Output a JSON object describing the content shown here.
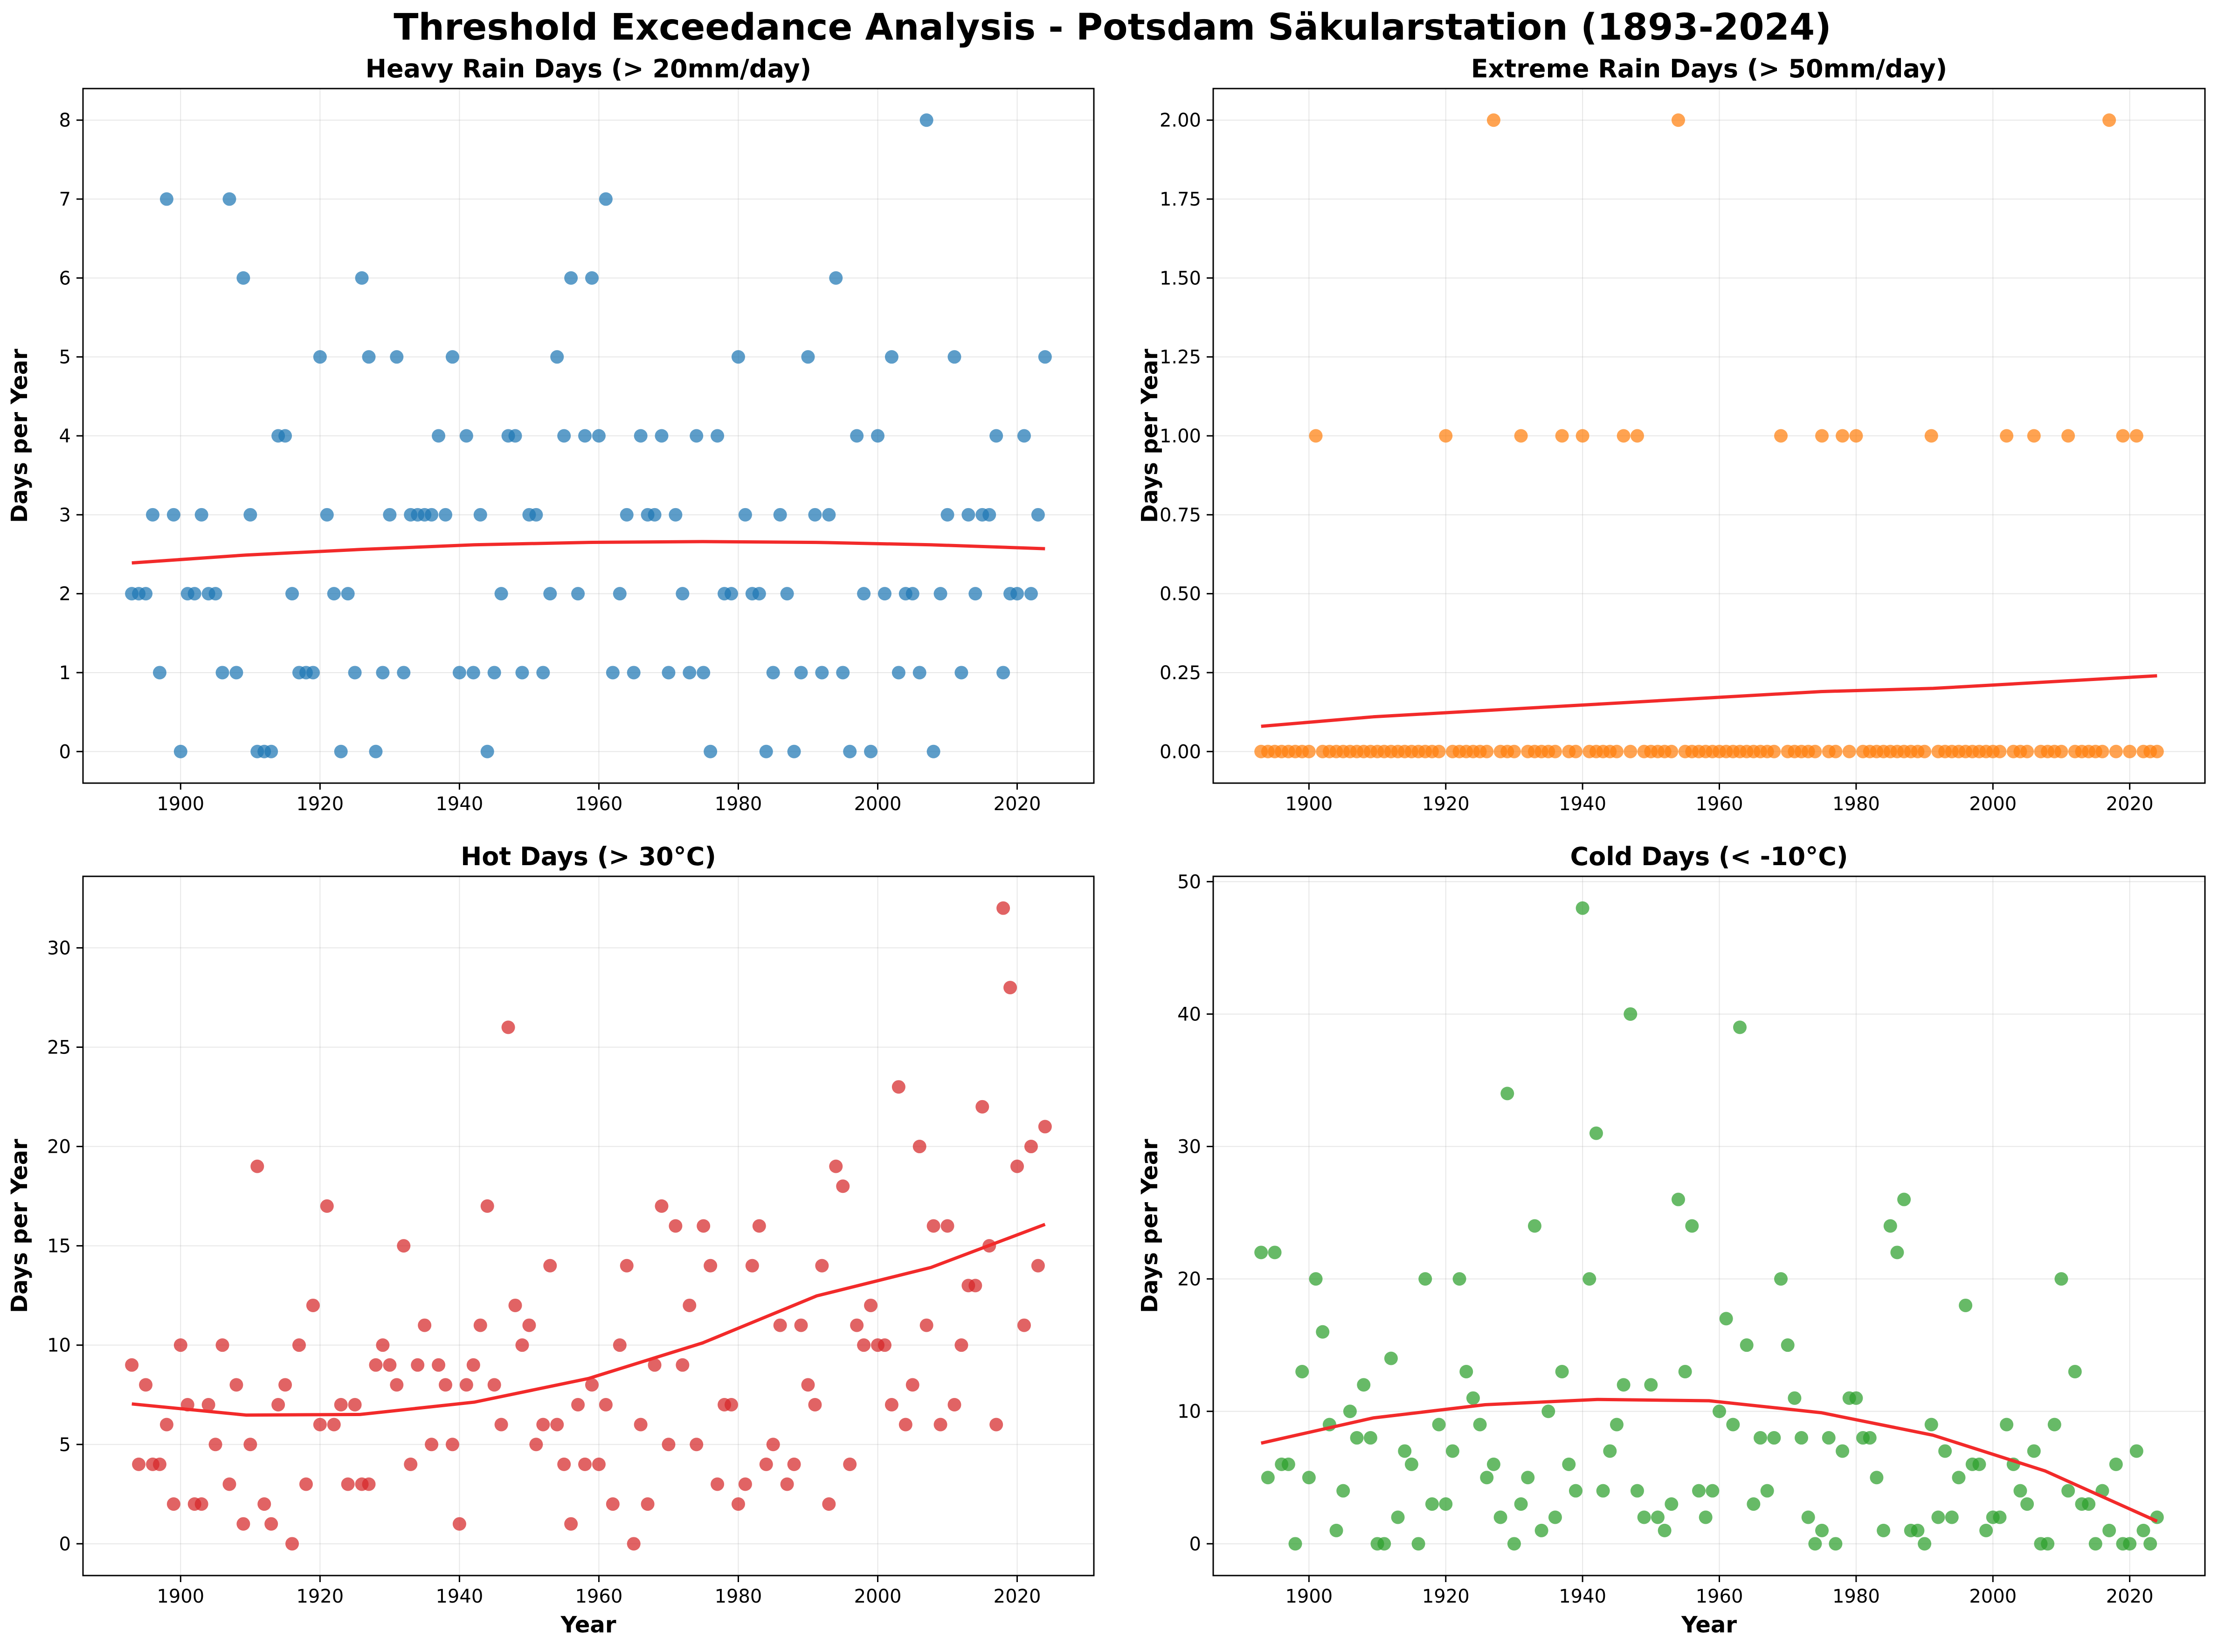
{
  "title": "Threshold Exceedance Analysis - Potsdam Säkularstation (1893-2024)",
  "trend_color": "#f22a2a",
  "chart_data": [
    {
      "type": "scatter",
      "title": "Heavy Rain Days (> 20mm/day)",
      "xlabel": "",
      "ylabel": "Days per Year",
      "xlim": [
        1886,
        2031
      ],
      "ylim": [
        -0.4,
        8.4
      ],
      "xticks": [
        1900,
        1920,
        1940,
        1960,
        1980,
        2000,
        2020
      ],
      "yticks": [
        0,
        1,
        2,
        3,
        4,
        5,
        6,
        7,
        8
      ],
      "ytick_labels": [
        "0",
        "1",
        "2",
        "3",
        "4",
        "5",
        "6",
        "7",
        "8"
      ],
      "color": "#1f77b4",
      "grid": true,
      "x": [
        1893,
        1894,
        1895,
        1896,
        1897,
        1898,
        1899,
        1900,
        1901,
        1902,
        1903,
        1904,
        1905,
        1906,
        1907,
        1908,
        1909,
        1910,
        1911,
        1912,
        1913,
        1914,
        1915,
        1916,
        1917,
        1918,
        1919,
        1920,
        1921,
        1922,
        1923,
        1924,
        1925,
        1926,
        1927,
        1928,
        1929,
        1930,
        1931,
        1932,
        1933,
        1934,
        1935,
        1936,
        1937,
        1938,
        1939,
        1940,
        1941,
        1942,
        1943,
        1944,
        1945,
        1946,
        1947,
        1948,
        1949,
        1950,
        1951,
        1952,
        1953,
        1954,
        1955,
        1956,
        1957,
        1958,
        1959,
        1960,
        1961,
        1962,
        1963,
        1964,
        1965,
        1966,
        1967,
        1968,
        1969,
        1970,
        1971,
        1972,
        1973,
        1974,
        1975,
        1976,
        1977,
        1978,
        1979,
        1980,
        1981,
        1982,
        1983,
        1984,
        1985,
        1986,
        1987,
        1988,
        1989,
        1990,
        1991,
        1992,
        1993,
        1994,
        1995,
        1996,
        1997,
        1998,
        1999,
        2000,
        2001,
        2002,
        2003,
        2004,
        2005,
        2006,
        2007,
        2008,
        2009,
        2010,
        2011,
        2012,
        2013,
        2014,
        2015,
        2016,
        2017,
        2018,
        2019,
        2020,
        2021,
        2022,
        2023,
        2024
      ],
      "y": [
        2,
        2,
        2,
        3,
        1,
        7,
        3,
        0,
        2,
        2,
        3,
        2,
        2,
        1,
        7,
        1,
        6,
        3,
        0,
        0,
        0,
        4,
        4,
        2,
        1,
        1,
        1,
        5,
        3,
        2,
        0,
        2,
        1,
        6,
        5,
        0,
        1,
        3,
        5,
        1,
        3,
        3,
        3,
        3,
        4,
        3,
        5,
        1,
        4,
        1,
        3,
        0,
        1,
        2,
        4,
        4,
        1,
        3,
        3,
        1,
        2,
        5,
        4,
        6,
        2,
        4,
        6,
        4,
        7,
        1,
        2,
        3,
        1,
        4,
        3,
        3,
        4,
        1,
        3,
        2,
        1,
        4,
        1,
        0,
        4,
        2,
        2,
        5,
        3,
        2,
        2,
        0,
        1,
        3,
        2,
        0,
        1,
        5,
        3,
        1,
        3,
        6,
        1,
        0,
        4,
        2,
        0,
        4,
        2,
        5,
        1,
        2,
        2,
        1,
        8,
        0,
        2,
        3,
        5,
        1,
        3,
        2,
        3,
        3,
        4,
        1,
        2,
        2,
        4,
        2,
        3,
        5
      ],
      "trend": [
        2.39,
        2.49,
        2.56,
        2.62,
        2.65,
        2.66,
        2.65,
        2.62,
        2.57
      ]
    },
    {
      "type": "scatter",
      "title": "Extreme Rain Days (> 50mm/day)",
      "xlabel": "",
      "ylabel": "Days per Year",
      "xlim": [
        1886,
        2031
      ],
      "ylim": [
        -0.1,
        2.1
      ],
      "xticks": [
        1900,
        1920,
        1940,
        1960,
        1980,
        2000,
        2020
      ],
      "yticks": [
        0,
        0.25,
        0.5,
        0.75,
        1.0,
        1.25,
        1.5,
        1.75,
        2.0
      ],
      "ytick_labels": [
        "0.00",
        "0.25",
        "0.50",
        "0.75",
        "1.00",
        "1.25",
        "1.50",
        "1.75",
        "2.00"
      ],
      "color": "#ff7f0e",
      "grid": true,
      "x": [
        1893,
        1894,
        1895,
        1896,
        1897,
        1898,
        1899,
        1900,
        1901,
        1902,
        1903,
        1904,
        1905,
        1906,
        1907,
        1908,
        1909,
        1910,
        1911,
        1912,
        1913,
        1914,
        1915,
        1916,
        1917,
        1918,
        1919,
        1920,
        1921,
        1922,
        1923,
        1924,
        1925,
        1926,
        1927,
        1928,
        1929,
        1930,
        1931,
        1932,
        1933,
        1934,
        1935,
        1936,
        1937,
        1938,
        1939,
        1940,
        1941,
        1942,
        1943,
        1944,
        1945,
        1946,
        1947,
        1948,
        1949,
        1950,
        1951,
        1952,
        1953,
        1954,
        1955,
        1956,
        1957,
        1958,
        1959,
        1960,
        1961,
        1962,
        1963,
        1964,
        1965,
        1966,
        1967,
        1968,
        1969,
        1970,
        1971,
        1972,
        1973,
        1974,
        1975,
        1976,
        1977,
        1978,
        1979,
        1980,
        1981,
        1982,
        1983,
        1984,
        1985,
        1986,
        1987,
        1988,
        1989,
        1990,
        1991,
        1992,
        1993,
        1994,
        1995,
        1996,
        1997,
        1998,
        1999,
        2000,
        2001,
        2002,
        2003,
        2004,
        2005,
        2006,
        2007,
        2008,
        2009,
        2010,
        2011,
        2012,
        2013,
        2014,
        2015,
        2016,
        2017,
        2018,
        2019,
        2020,
        2021,
        2022,
        2023,
        2024
      ],
      "y": [
        0,
        0,
        0,
        0,
        0,
        0,
        0,
        0,
        1,
        0,
        0,
        0,
        0,
        0,
        0,
        0,
        0,
        0,
        0,
        0,
        0,
        0,
        0,
        0,
        0,
        0,
        0,
        1,
        0,
        0,
        0,
        0,
        0,
        0,
        2,
        0,
        0,
        0,
        1,
        0,
        0,
        0,
        0,
        0,
        1,
        0,
        0,
        1,
        0,
        0,
        0,
        0,
        0,
        1,
        0,
        1,
        0,
        0,
        0,
        0,
        0,
        2,
        0,
        0,
        0,
        0,
        0,
        0,
        0,
        0,
        0,
        0,
        0,
        0,
        0,
        0,
        1,
        0,
        0,
        0,
        0,
        0,
        1,
        0,
        0,
        1,
        0,
        1,
        0,
        0,
        0,
        0,
        0,
        0,
        0,
        0,
        0,
        0,
        1,
        0,
        0,
        0,
        0,
        0,
        0,
        0,
        0,
        0,
        0,
        1,
        0,
        0,
        0,
        1,
        0,
        0,
        0,
        0,
        1,
        0,
        0,
        0,
        0,
        0,
        2,
        0,
        1,
        0,
        1,
        0,
        0,
        0
      ],
      "trend": [
        0.08,
        0.11,
        0.13,
        0.15,
        0.17,
        0.19,
        0.2,
        0.22,
        0.24
      ]
    },
    {
      "type": "scatter",
      "title": "Hot Days (> 30°C)",
      "xlabel": "Year",
      "ylabel": "Days per Year",
      "xlim": [
        1886,
        2031
      ],
      "ylim": [
        -1.6,
        33.6
      ],
      "xticks": [
        1900,
        1920,
        1940,
        1960,
        1980,
        2000,
        2020
      ],
      "yticks": [
        0,
        5,
        10,
        15,
        20,
        25,
        30
      ],
      "ytick_labels": [
        "0",
        "5",
        "10",
        "15",
        "20",
        "25",
        "30"
      ],
      "color": "#d62728",
      "grid": true,
      "x": [
        1893,
        1894,
        1895,
        1896,
        1897,
        1898,
        1899,
        1900,
        1901,
        1902,
        1903,
        1904,
        1905,
        1906,
        1907,
        1908,
        1909,
        1910,
        1911,
        1912,
        1913,
        1914,
        1915,
        1916,
        1917,
        1918,
        1919,
        1920,
        1921,
        1922,
        1923,
        1924,
        1925,
        1926,
        1927,
        1928,
        1929,
        1930,
        1931,
        1932,
        1933,
        1934,
        1935,
        1936,
        1937,
        1938,
        1939,
        1940,
        1941,
        1942,
        1943,
        1944,
        1945,
        1946,
        1947,
        1948,
        1949,
        1950,
        1951,
        1952,
        1953,
        1954,
        1955,
        1956,
        1957,
        1958,
        1959,
        1960,
        1961,
        1962,
        1963,
        1964,
        1965,
        1966,
        1967,
        1968,
        1969,
        1970,
        1971,
        1972,
        1973,
        1974,
        1975,
        1976,
        1977,
        1978,
        1979,
        1980,
        1981,
        1982,
        1983,
        1984,
        1985,
        1986,
        1987,
        1988,
        1989,
        1990,
        1991,
        1992,
        1993,
        1994,
        1995,
        1996,
        1997,
        1998,
        1999,
        2000,
        2001,
        2002,
        2003,
        2004,
        2005,
        2006,
        2007,
        2008,
        2009,
        2010,
        2011,
        2012,
        2013,
        2014,
        2015,
        2016,
        2017,
        2018,
        2019,
        2020,
        2021,
        2022,
        2023,
        2024
      ],
      "y": [
        9,
        4,
        8,
        4,
        4,
        6,
        2,
        10,
        7,
        2,
        2,
        7,
        5,
        10,
        3,
        8,
        1,
        5,
        19,
        2,
        1,
        7,
        8,
        0,
        10,
        3,
        12,
        6,
        17,
        6,
        7,
        3,
        7,
        3,
        3,
        9,
        10,
        9,
        8,
        15,
        4,
        9,
        11,
        5,
        9,
        8,
        5,
        1,
        8,
        9,
        11,
        17,
        8,
        6,
        26,
        12,
        10,
        11,
        5,
        6,
        14,
        6,
        4,
        1,
        7,
        4,
        8,
        4,
        7,
        2,
        10,
        14,
        0,
        6,
        2,
        9,
        17,
        5,
        16,
        9,
        12,
        5,
        16,
        14,
        3,
        7,
        7,
        2,
        3,
        14,
        16,
        4,
        5,
        11,
        3,
        4,
        11,
        8,
        7,
        14,
        2,
        19,
        18,
        4,
        11,
        10,
        12,
        10,
        10,
        7,
        23,
        6,
        8,
        20,
        11,
        16,
        6,
        16,
        7,
        10,
        13,
        13,
        22,
        15,
        6,
        32,
        28,
        19,
        11,
        20,
        14,
        21
      ],
      "trend": [
        7.04,
        6.48,
        6.51,
        7.13,
        8.32,
        10.11,
        12.48,
        13.91,
        16.08
      ]
    },
    {
      "type": "scatter",
      "title": "Cold Days (< -10°C)",
      "xlabel": "Year",
      "ylabel": "Days per Year",
      "xlim": [
        1886,
        2031
      ],
      "ylim": [
        -2.4,
        50.4
      ],
      "xticks": [
        1900,
        1920,
        1940,
        1960,
        1980,
        2000,
        2020
      ],
      "yticks": [
        0,
        10,
        20,
        30,
        40,
        50
      ],
      "ytick_labels": [
        "0",
        "10",
        "20",
        "30",
        "40",
        "50"
      ],
      "color": "#2ca02c",
      "grid": true,
      "x": [
        1893,
        1894,
        1895,
        1896,
        1897,
        1898,
        1899,
        1900,
        1901,
        1902,
        1903,
        1904,
        1905,
        1906,
        1907,
        1908,
        1909,
        1910,
        1911,
        1912,
        1913,
        1914,
        1915,
        1916,
        1917,
        1918,
        1919,
        1920,
        1921,
        1922,
        1923,
        1924,
        1925,
        1926,
        1927,
        1928,
        1929,
        1930,
        1931,
        1932,
        1933,
        1934,
        1935,
        1936,
        1937,
        1938,
        1939,
        1940,
        1941,
        1942,
        1943,
        1944,
        1945,
        1946,
        1947,
        1948,
        1949,
        1950,
        1951,
        1952,
        1953,
        1954,
        1955,
        1956,
        1957,
        1958,
        1959,
        1960,
        1961,
        1962,
        1963,
        1964,
        1965,
        1966,
        1967,
        1968,
        1969,
        1970,
        1971,
        1972,
        1973,
        1974,
        1975,
        1976,
        1977,
        1978,
        1979,
        1980,
        1981,
        1982,
        1983,
        1984,
        1985,
        1986,
        1987,
        1988,
        1989,
        1990,
        1991,
        1992,
        1993,
        1994,
        1995,
        1996,
        1997,
        1998,
        1999,
        2000,
        2001,
        2002,
        2003,
        2004,
        2005,
        2006,
        2007,
        2008,
        2009,
        2010,
        2011,
        2012,
        2013,
        2014,
        2015,
        2016,
        2017,
        2018,
        2019,
        2020,
        2021,
        2022,
        2023,
        2024
      ],
      "y": [
        22,
        5,
        22,
        6,
        6,
        0,
        13,
        5,
        20,
        16,
        9,
        1,
        4,
        10,
        8,
        12,
        8,
        0,
        0,
        14,
        2,
        7,
        6,
        0,
        20,
        3,
        9,
        3,
        7,
        20,
        13,
        11,
        9,
        5,
        6,
        2,
        34,
        0,
        3,
        5,
        24,
        1,
        10,
        2,
        13,
        6,
        4,
        48,
        20,
        31,
        4,
        7,
        9,
        12,
        40,
        4,
        2,
        12,
        2,
        1,
        3,
        26,
        13,
        24,
        4,
        2,
        4,
        10,
        17,
        9,
        39,
        15,
        3,
        8,
        4,
        8,
        20,
        15,
        11,
        8,
        2,
        0,
        1,
        8,
        0,
        7,
        11,
        11,
        8,
        8,
        5,
        1,
        24,
        22,
        26,
        1,
        1,
        0,
        9,
        2,
        7,
        2,
        5,
        18,
        6,
        6,
        1,
        2,
        2,
        9,
        6,
        4,
        3,
        7,
        0,
        0,
        9,
        20,
        4,
        13,
        3,
        3,
        0,
        4,
        1,
        6,
        0,
        0,
        7,
        1,
        0,
        2
      ],
      "trend": [
        7.6,
        9.5,
        10.5,
        10.9,
        10.8,
        9.9,
        8.2,
        5.5,
        1.7
      ]
    }
  ]
}
